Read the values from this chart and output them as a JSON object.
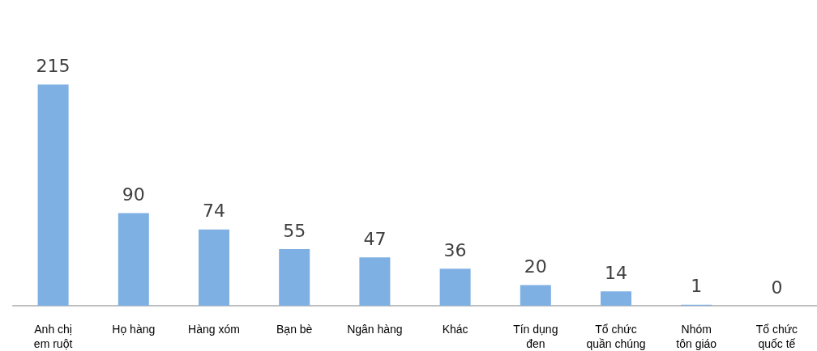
{
  "chart_data": {
    "type": "bar",
    "categories": [
      "Anh chị\nem ruột",
      "Họ hàng",
      "Hàng xóm",
      "Bạn bè",
      "Ngân hàng",
      "Khác",
      "Tín dụng\nđen",
      "Tổ chức\nquần chúng",
      "Nhóm\ntôn giáo",
      "Tổ chức\nquốc tế"
    ],
    "values": [
      215,
      90,
      74,
      55,
      47,
      36,
      20,
      14,
      1,
      0
    ],
    "color": "#7eb0e3",
    "data_labels": true
  }
}
